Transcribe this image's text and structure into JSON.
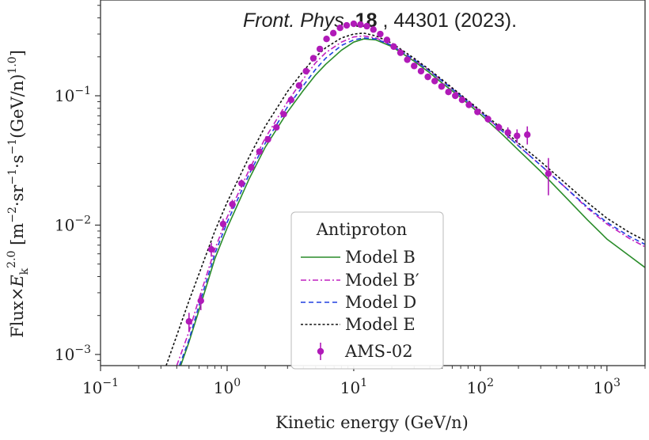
{
  "citation": {
    "journal": "Front. Phys.",
    "volume": "18",
    "rest": ", 44301 (2023)."
  },
  "chart_data": {
    "type": "line",
    "xlabel": "Kinetic energy (GeV/n)",
    "ylabel_plain": "Flux×E_k^2.0 [m^-2·sr^-1·s^-1(GeV/n)^1.0]",
    "xscale": "log",
    "yscale": "log",
    "xlim": [
      0.1,
      2000
    ],
    "ylim": [
      0.00082,
      0.55
    ],
    "x_ticks": [
      {
        "value": 0.1,
        "base": "10",
        "exp": "−1"
      },
      {
        "value": 1,
        "base": "10",
        "exp": "0"
      },
      {
        "value": 10,
        "base": "10",
        "exp": "1"
      },
      {
        "value": 100,
        "base": "10",
        "exp": "2"
      },
      {
        "value": 1000,
        "base": "10",
        "exp": "3"
      }
    ],
    "y_ticks": [
      {
        "value": 0.001,
        "base": "10",
        "exp": "−3"
      },
      {
        "value": 0.01,
        "base": "10",
        "exp": "−2"
      },
      {
        "value": 0.1,
        "base": "10",
        "exp": "−1"
      }
    ],
    "grid": false,
    "legend": {
      "title": "Antiproton",
      "placement": "lower-center"
    },
    "colors": {
      "model_b": "#2a8c2a",
      "model_b_prime": "#c020c0",
      "model_d": "#2040e0",
      "model_e": "#111111",
      "ams": "#b01ab8"
    },
    "series": [
      {
        "name": "Model B",
        "style": "solid",
        "color": "#2a8c2a",
        "x": [
          0.43,
          0.5,
          0.6,
          0.8,
          1.0,
          1.5,
          2,
          3,
          4,
          5,
          6,
          8,
          10,
          12,
          15,
          20,
          30,
          40,
          50,
          70,
          100,
          150,
          200,
          300,
          500,
          700,
          1000,
          1500,
          2000
        ],
        "y": [
          0.00082,
          0.00125,
          0.0022,
          0.0055,
          0.0095,
          0.023,
          0.04,
          0.075,
          0.11,
          0.145,
          0.175,
          0.225,
          0.26,
          0.275,
          0.27,
          0.24,
          0.185,
          0.15,
          0.125,
          0.097,
          0.072,
          0.05,
          0.038,
          0.026,
          0.0155,
          0.011,
          0.0078,
          0.0058,
          0.0047
        ]
      },
      {
        "name": "Model B′",
        "style": "dashdot",
        "color": "#c020c0",
        "x": [
          0.4,
          0.5,
          0.6,
          0.8,
          1.0,
          1.5,
          2,
          3,
          4,
          5,
          6,
          8,
          10,
          12,
          15,
          20,
          30,
          40,
          50,
          70,
          100,
          150,
          200,
          300,
          500,
          700,
          1000,
          1500,
          2000
        ],
        "y": [
          0.00082,
          0.0015,
          0.0027,
          0.0065,
          0.0115,
          0.027,
          0.047,
          0.09,
          0.135,
          0.18,
          0.215,
          0.26,
          0.285,
          0.29,
          0.28,
          0.245,
          0.19,
          0.155,
          0.13,
          0.1,
          0.075,
          0.053,
          0.041,
          0.029,
          0.0185,
          0.0135,
          0.0102,
          0.0079,
          0.0068
        ]
      },
      {
        "name": "Model D",
        "style": "dashed",
        "color": "#2040e0",
        "x": [
          0.42,
          0.5,
          0.6,
          0.8,
          1.0,
          1.5,
          2,
          3,
          4,
          5,
          6,
          8,
          10,
          12,
          15,
          20,
          30,
          40,
          50,
          70,
          100,
          150,
          200,
          300,
          500,
          700,
          1000,
          1500,
          2000
        ],
        "y": [
          0.00082,
          0.0013,
          0.0024,
          0.006,
          0.0105,
          0.025,
          0.043,
          0.082,
          0.12,
          0.16,
          0.195,
          0.245,
          0.27,
          0.28,
          0.275,
          0.245,
          0.19,
          0.155,
          0.13,
          0.1,
          0.075,
          0.053,
          0.041,
          0.029,
          0.0185,
          0.0138,
          0.0105,
          0.0082,
          0.0071
        ]
      },
      {
        "name": "Model E",
        "style": "dotted",
        "color": "#111111",
        "x": [
          0.33,
          0.4,
          0.5,
          0.6,
          0.8,
          1.0,
          1.5,
          2,
          3,
          4,
          5,
          6,
          8,
          10,
          12,
          15,
          20,
          30,
          40,
          50,
          70,
          100,
          150,
          200,
          300,
          500,
          700,
          1000,
          1500,
          2000
        ],
        "y": [
          0.00082,
          0.0014,
          0.0026,
          0.0042,
          0.009,
          0.015,
          0.034,
          0.058,
          0.108,
          0.155,
          0.2,
          0.235,
          0.28,
          0.3,
          0.305,
          0.29,
          0.255,
          0.195,
          0.158,
          0.133,
          0.102,
          0.077,
          0.055,
          0.043,
          0.031,
          0.02,
          0.015,
          0.0113,
          0.0088,
          0.0076
        ]
      },
      {
        "name": "AMS-02",
        "style": "points",
        "color": "#b01ab8",
        "x": [
          0.5,
          0.62,
          0.75,
          0.93,
          1.1,
          1.3,
          1.55,
          1.8,
          2.1,
          2.45,
          2.8,
          3.2,
          3.7,
          4.2,
          4.8,
          5.4,
          6.1,
          6.9,
          7.8,
          8.8,
          10,
          11.3,
          12.7,
          14.3,
          16.2,
          18.3,
          20.7,
          23.4,
          26.5,
          30,
          34,
          38.5,
          43.6,
          49.4,
          56,
          63.4,
          71.8,
          81.3,
          95,
          115,
          140,
          165,
          195,
          235,
          345
        ],
        "y": [
          0.0018,
          0.0026,
          0.0065,
          0.0102,
          0.0145,
          0.021,
          0.028,
          0.037,
          0.046,
          0.057,
          0.072,
          0.093,
          0.12,
          0.155,
          0.195,
          0.23,
          0.275,
          0.305,
          0.335,
          0.35,
          0.36,
          0.355,
          0.345,
          0.325,
          0.3,
          0.27,
          0.24,
          0.215,
          0.19,
          0.17,
          0.155,
          0.14,
          0.13,
          0.118,
          0.107,
          0.1,
          0.093,
          0.085,
          0.075,
          0.066,
          0.057,
          0.052,
          0.049,
          0.05,
          0.025
        ],
        "yerr": [
          0.0003,
          0.0004,
          0.0008,
          0.001,
          0.0012,
          0.0015,
          0.0018,
          0.002,
          0.0022,
          0.0025,
          0.003,
          0.0035,
          0.004,
          0.005,
          0.006,
          0.007,
          0.008,
          0.009,
          0.009,
          0.009,
          0.009,
          0.009,
          0.009,
          0.009,
          0.008,
          0.008,
          0.007,
          0.007,
          0.006,
          0.006,
          0.005,
          0.005,
          0.005,
          0.004,
          0.004,
          0.004,
          0.004,
          0.004,
          0.004,
          0.004,
          0.004,
          0.005,
          0.006,
          0.008,
          0.008
        ]
      }
    ]
  }
}
